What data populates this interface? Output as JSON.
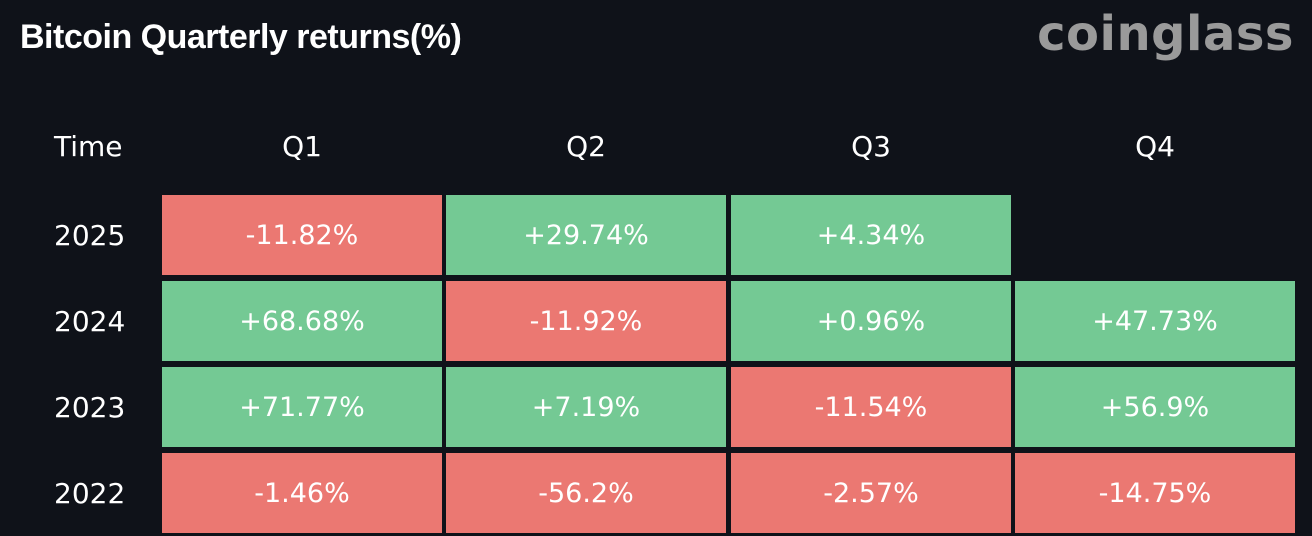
{
  "title": "Bitcoin Quarterly returns(%)",
  "brand": "coinglass",
  "colors": {
    "background": "#0f1219",
    "positive": "#74c994",
    "negative": "#eb7872",
    "text": "#ffffff",
    "brand": "#9a9a9a"
  },
  "chart_data": {
    "type": "table",
    "title": "Bitcoin Quarterly returns(%)",
    "row_header": "Time",
    "columns": [
      "Q1",
      "Q2",
      "Q3",
      "Q4"
    ],
    "rows": [
      {
        "label": "2025",
        "values": [
          "-11.82%",
          "+29.74%",
          "+4.34%",
          ""
        ],
        "numeric": [
          -11.82,
          29.74,
          4.34,
          null
        ]
      },
      {
        "label": "2024",
        "values": [
          "+68.68%",
          "-11.92%",
          "+0.96%",
          "+47.73%"
        ],
        "numeric": [
          68.68,
          -11.92,
          0.96,
          47.73
        ]
      },
      {
        "label": "2023",
        "values": [
          "+71.77%",
          "+7.19%",
          "-11.54%",
          "+56.9%"
        ],
        "numeric": [
          71.77,
          7.19,
          -11.54,
          56.9
        ]
      },
      {
        "label": "2022",
        "values": [
          "-1.46%",
          "-56.2%",
          "-2.57%",
          "-14.75%"
        ],
        "numeric": [
          -1.46,
          -56.2,
          -2.57,
          -14.75
        ]
      }
    ]
  }
}
